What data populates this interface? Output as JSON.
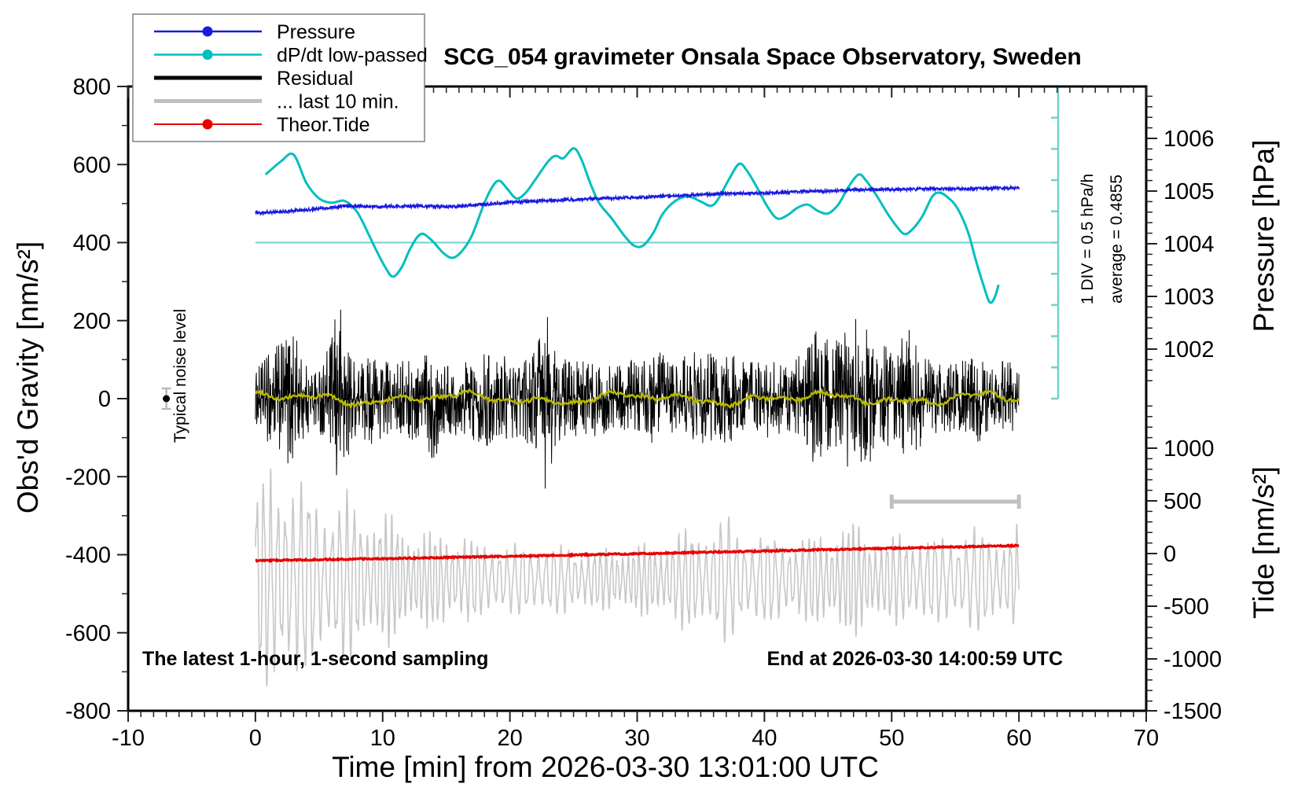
{
  "chart_data": {
    "type": "line",
    "title": "SCG_054 gravimeter Onsala Space Observatory, Sweden",
    "xlabel": "Time [min] from 2026-03-30 13:01:00 UTC",
    "x_range": [
      -10,
      70
    ],
    "x_major_step": 10,
    "x_minor_step": 1,
    "x_tick_labels": [
      "-10",
      "0",
      "10",
      "20",
      "30",
      "40",
      "50",
      "60",
      "70"
    ],
    "grid": false,
    "axes": {
      "gravity": {
        "label": "Obs'd Gravity [nm/s²]",
        "range": [
          -800,
          800
        ],
        "major_step": 200,
        "minor_step": 100,
        "tick_labels": [
          "800",
          "600",
          "400",
          "200",
          "0",
          "-200",
          "-400",
          "-600",
          "-800"
        ]
      },
      "pressure": {
        "label": "Pressure [hPa]",
        "tick_labels": [
          "1006",
          "1005",
          "1004",
          "1003",
          "1002"
        ],
        "tick_values": [
          1006,
          1005,
          1004,
          1003,
          1002
        ],
        "minor_step_hpa": 0.2
      },
      "tide": {
        "label": "Tide [nm/s²]",
        "tick_labels": [
          "1000",
          "500",
          "0",
          "-500",
          "-1000",
          "-1500"
        ],
        "tick_values": [
          1000,
          500,
          0,
          -500,
          -1000,
          -1500
        ],
        "minor_step": 100
      }
    },
    "legend": [
      {
        "label": "Pressure",
        "color": "#1a1ae0",
        "marker": "dot",
        "width": 2.5
      },
      {
        "label": "dP/dt low-passed",
        "color": "#00bfbf",
        "marker": "dot",
        "width": 2.5
      },
      {
        "label": "Residual",
        "color": "#000000",
        "marker": "line",
        "width": 5
      },
      {
        "label": "... last 10 min.",
        "color": "#c0c0c0",
        "marker": "line",
        "width": 5
      },
      {
        "label": "Theor.Tide",
        "color": "#e80000",
        "marker": "dot",
        "width": 2
      }
    ],
    "annotations": {
      "sampling_note": "The latest 1-hour, 1-second sampling",
      "end_note": "End at 2026-03-30 14:00:59 UTC",
      "noise_label": "Typical noise level",
      "noise_marker": {
        "t_min": -7,
        "gravity": 0
      },
      "dpdt_div_label": "1 DIV = 0.5 hPa/h",
      "dpdt_average_label": "average = 0.4855",
      "dpdt_div_hpa_per_h": 0.5,
      "dpdt_average_hpa_per_h": 0.4855,
      "dpdt_zero_at_gravity": 400,
      "last10min_bracket": {
        "from_min": 50,
        "to_min": 60,
        "at_gravity": -264
      }
    },
    "series": {
      "pressure": {
        "name": "Pressure",
        "color": "#1a1ae0",
        "units": "hPa",
        "points": [
          [
            0,
            1004.58
          ],
          [
            2,
            1004.61
          ],
          [
            4,
            1004.64
          ],
          [
            6,
            1004.69
          ],
          [
            7,
            1004.72
          ],
          [
            9,
            1004.7
          ],
          [
            11,
            1004.71
          ],
          [
            13,
            1004.72
          ],
          [
            15,
            1004.7
          ],
          [
            17,
            1004.73
          ],
          [
            19,
            1004.77
          ],
          [
            21,
            1004.8
          ],
          [
            23,
            1004.82
          ],
          [
            25,
            1004.84
          ],
          [
            27,
            1004.86
          ],
          [
            29,
            1004.875
          ],
          [
            31,
            1004.89
          ],
          [
            33,
            1004.91
          ],
          [
            35,
            1004.93
          ],
          [
            37,
            1004.95
          ],
          [
            39,
            1004.96
          ],
          [
            41,
            1004.97
          ],
          [
            43,
            1004.99
          ],
          [
            45,
            1005.0
          ],
          [
            47,
            1005.02
          ],
          [
            49,
            1005.03
          ],
          [
            51,
            1005.03
          ],
          [
            53,
            1005.04
          ],
          [
            55,
            1005.04
          ],
          [
            57,
            1005.05
          ],
          [
            60,
            1005.06
          ]
        ]
      },
      "dpdt_lowpassed": {
        "name": "dP/dt low-passed",
        "color": "#00bfbf",
        "units": "hPa/h",
        "points": [
          [
            0.8,
            1.08
          ],
          [
            2,
            1.29
          ],
          [
            3,
            1.4
          ],
          [
            4,
            0.95
          ],
          [
            5,
            0.7
          ],
          [
            6,
            0.63
          ],
          [
            7,
            0.66
          ],
          [
            8,
            0.48
          ],
          [
            9,
            0.08
          ],
          [
            9.5,
            -0.13
          ],
          [
            10.2,
            -0.4
          ],
          [
            10.8,
            -0.55
          ],
          [
            11.5,
            -0.4
          ],
          [
            12.2,
            -0.09
          ],
          [
            13,
            0.13
          ],
          [
            13.8,
            0.04
          ],
          [
            14.8,
            -0.18
          ],
          [
            15.5,
            -0.25
          ],
          [
            16.2,
            -0.15
          ],
          [
            17,
            0.1
          ],
          [
            18,
            0.63
          ],
          [
            18.7,
            0.91
          ],
          [
            19.2,
            0.98
          ],
          [
            19.8,
            0.85
          ],
          [
            20.5,
            0.7
          ],
          [
            21.2,
            0.78
          ],
          [
            22,
            1.0
          ],
          [
            23,
            1.29
          ],
          [
            23.6,
            1.38
          ],
          [
            24.2,
            1.34
          ],
          [
            25,
            1.5
          ],
          [
            25.6,
            1.33
          ],
          [
            26.3,
            0.95
          ],
          [
            27,
            0.63
          ],
          [
            28,
            0.38
          ],
          [
            29,
            0.1
          ],
          [
            29.8,
            -0.06
          ],
          [
            30.5,
            -0.05
          ],
          [
            31.3,
            0.16
          ],
          [
            32,
            0.45
          ],
          [
            33,
            0.66
          ],
          [
            34,
            0.73
          ],
          [
            35,
            0.65
          ],
          [
            35.8,
            0.58
          ],
          [
            36.4,
            0.7
          ],
          [
            37.2,
            1.0
          ],
          [
            38,
            1.25
          ],
          [
            38.6,
            1.15
          ],
          [
            39.4,
            0.88
          ],
          [
            40.2,
            0.58
          ],
          [
            41,
            0.38
          ],
          [
            41.8,
            0.43
          ],
          [
            42.6,
            0.55
          ],
          [
            43.4,
            0.6
          ],
          [
            44.2,
            0.5
          ],
          [
            45,
            0.46
          ],
          [
            45.8,
            0.6
          ],
          [
            46.6,
            0.88
          ],
          [
            47.4,
            1.08
          ],
          [
            48,
            0.98
          ],
          [
            48.8,
            0.75
          ],
          [
            49.6,
            0.48
          ],
          [
            50.4,
            0.25
          ],
          [
            51,
            0.13
          ],
          [
            51.6,
            0.2
          ],
          [
            52.4,
            0.41
          ],
          [
            53.2,
            0.73
          ],
          [
            53.8,
            0.79
          ],
          [
            54.5,
            0.7
          ],
          [
            55.2,
            0.53
          ],
          [
            56,
            0.16
          ],
          [
            56.6,
            -0.28
          ],
          [
            57.2,
            -0.68
          ],
          [
            57.7,
            -0.96
          ],
          [
            58.1,
            -0.88
          ],
          [
            58.4,
            -0.68
          ]
        ]
      },
      "residual": {
        "name": "Residual",
        "color": "#000000",
        "units": "nm/s2",
        "center": 0,
        "envelope": [
          [
            0,
            70
          ],
          [
            1,
            120
          ],
          [
            1.5,
            150
          ],
          [
            2,
            140
          ],
          [
            2.5,
            175
          ],
          [
            3,
            200
          ],
          [
            3.5,
            120
          ],
          [
            4,
            90
          ],
          [
            5,
            85
          ],
          [
            6,
            150
          ],
          [
            6.5,
            290
          ],
          [
            7,
            200
          ],
          [
            7.5,
            120
          ],
          [
            8,
            95
          ],
          [
            9,
            120
          ],
          [
            10,
            105
          ],
          [
            11,
            85
          ],
          [
            12,
            115
          ],
          [
            13,
            95
          ],
          [
            14,
            170
          ],
          [
            14.5,
            120
          ],
          [
            15,
            100
          ],
          [
            16,
            95
          ],
          [
            17,
            105
          ],
          [
            18,
            125
          ],
          [
            19,
            105
          ],
          [
            20,
            115
          ],
          [
            21,
            95
          ],
          [
            22,
            150
          ],
          [
            22.8,
            240
          ],
          [
            23.3,
            180
          ],
          [
            24,
            105
          ],
          [
            25,
            95
          ],
          [
            26,
            105
          ],
          [
            27,
            95
          ],
          [
            28,
            85
          ],
          [
            29,
            95
          ],
          [
            30,
            105
          ],
          [
            31,
            115
          ],
          [
            32,
            120
          ],
          [
            33,
            105
          ],
          [
            34,
            115
          ],
          [
            35,
            125
          ],
          [
            36,
            115
          ],
          [
            37,
            135
          ],
          [
            38,
            115
          ],
          [
            39,
            95
          ],
          [
            40,
            105
          ],
          [
            41,
            95
          ],
          [
            42,
            85
          ],
          [
            43,
            125
          ],
          [
            44,
            185
          ],
          [
            44.5,
            150
          ],
          [
            45,
            160
          ],
          [
            46,
            145
          ],
          [
            47,
            225
          ],
          [
            47.5,
            180
          ],
          [
            48,
            200
          ],
          [
            48.5,
            160
          ],
          [
            49,
            150
          ],
          [
            50,
            125
          ],
          [
            51,
            165
          ],
          [
            51.5,
            185
          ],
          [
            52,
            145
          ],
          [
            53,
            95
          ],
          [
            54,
            85
          ],
          [
            55,
            95
          ],
          [
            56,
            105
          ],
          [
            57,
            115
          ],
          [
            58,
            95
          ],
          [
            59,
            105
          ],
          [
            60,
            85
          ]
        ]
      },
      "residual_smoothed": {
        "name": "Residual low-passed",
        "color": "#b9b900",
        "units": "nm/s2",
        "center": 0,
        "amplitude": 20
      },
      "last10min": {
        "name": "... last 10 min.",
        "color": "#c8c8c8",
        "units": "nm/s2",
        "center": -464,
        "wave_period_min": 0.52,
        "envelope": [
          [
            0,
            215
          ],
          [
            1,
            245
          ],
          [
            2,
            265
          ],
          [
            2.5,
            280
          ],
          [
            3,
            240
          ],
          [
            4,
            215
          ],
          [
            5,
            195
          ],
          [
            6,
            185
          ],
          [
            7,
            195
          ],
          [
            8,
            175
          ],
          [
            9,
            165
          ],
          [
            10,
            155
          ],
          [
            11,
            135
          ],
          [
            12,
            125
          ],
          [
            13,
            115
          ],
          [
            14,
            105
          ],
          [
            15,
            115
          ],
          [
            16,
            105
          ],
          [
            17,
            95
          ],
          [
            18,
            85
          ],
          [
            19,
            95
          ],
          [
            20,
            75
          ],
          [
            21,
            85
          ],
          [
            22,
            95
          ],
          [
            23,
            85
          ],
          [
            24,
            75
          ],
          [
            25,
            85
          ],
          [
            26,
            75
          ],
          [
            27,
            65
          ],
          [
            28,
            75
          ],
          [
            29,
            85
          ],
          [
            30,
            75
          ],
          [
            31,
            85
          ],
          [
            32,
            95
          ],
          [
            33,
            105
          ],
          [
            34,
            115
          ],
          [
            35,
            125
          ],
          [
            36,
            135
          ],
          [
            36.5,
            145
          ],
          [
            37,
            135
          ],
          [
            38,
            125
          ],
          [
            39,
            115
          ],
          [
            40,
            105
          ],
          [
            41,
            95
          ],
          [
            42,
            105
          ],
          [
            43,
            95
          ],
          [
            44,
            105
          ],
          [
            45,
            115
          ],
          [
            46,
            125
          ],
          [
            47,
            135
          ],
          [
            48,
            115
          ],
          [
            49,
            105
          ],
          [
            50,
            95
          ],
          [
            51,
            105
          ],
          [
            52,
            115
          ],
          [
            53,
            105
          ],
          [
            54,
            95
          ],
          [
            55,
            115
          ],
          [
            56,
            125
          ],
          [
            57,
            115
          ],
          [
            58,
            105
          ],
          [
            59,
            115
          ],
          [
            60,
            125
          ]
        ]
      },
      "theor_tide": {
        "name": "Theor.Tide",
        "color": "#e80000",
        "units": "nm/s2 (tide axis)",
        "points": [
          [
            0,
            -67
          ],
          [
            5,
            -58
          ],
          [
            10,
            -48
          ],
          [
            15,
            -37
          ],
          [
            20,
            -26
          ],
          [
            25,
            -14
          ],
          [
            30,
            -2
          ],
          [
            35,
            11
          ],
          [
            40,
            24
          ],
          [
            45,
            37
          ],
          [
            50,
            50
          ],
          [
            55,
            63
          ],
          [
            60,
            76
          ]
        ]
      }
    }
  }
}
